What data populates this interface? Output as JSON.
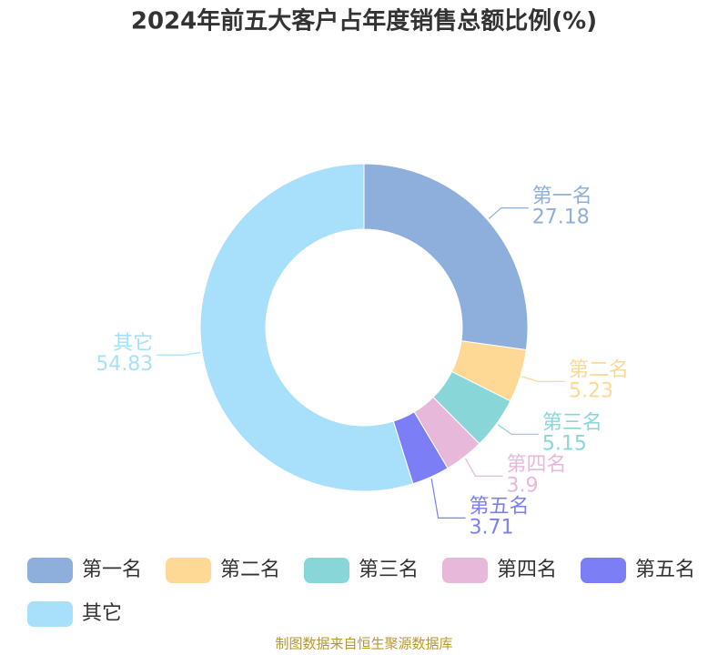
{
  "chart_data": {
    "type": "pie",
    "title": "2024年前五大客户占年度销售总额比例(%)",
    "categories": [
      "第一名",
      "第二名",
      "第三名",
      "第四名",
      "第五名",
      "其它"
    ],
    "values": [
      27.18,
      5.23,
      5.15,
      3.9,
      3.71,
      54.83
    ],
    "colors": [
      "#8eaedb",
      "#fed895",
      "#89d6d9",
      "#e7b8d9",
      "#7b7ef5",
      "#a8dffa"
    ],
    "source": "制图数据来自恒生聚源数据库"
  }
}
